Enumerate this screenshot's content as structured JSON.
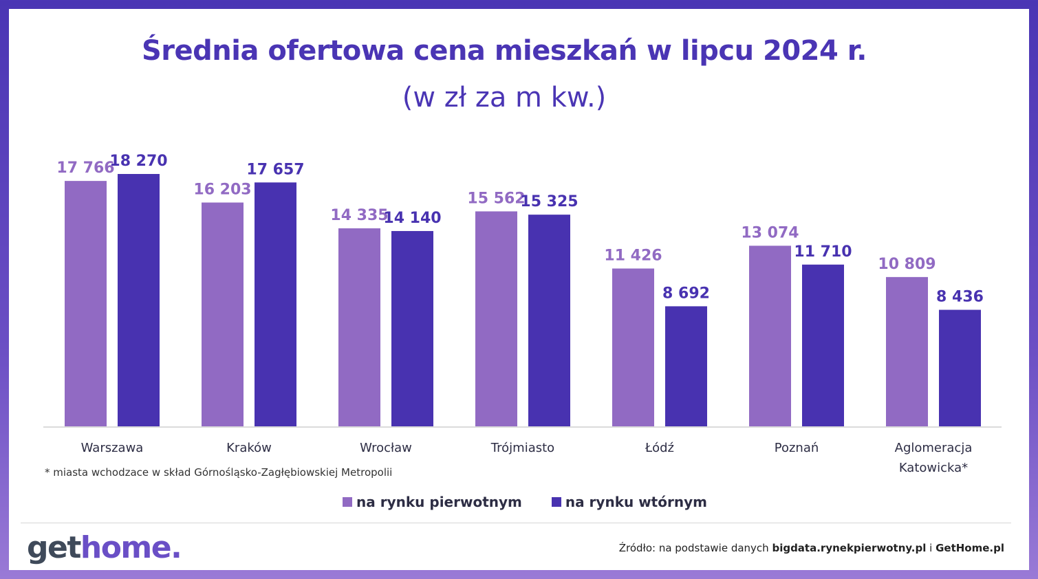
{
  "header": {
    "title": "Średnia ofertowa cena mieszkań w lipcu 2024 r.",
    "subtitle": "(w zł za m kw.)"
  },
  "colors": {
    "primary": "#916ac3",
    "secondary": "#4832b0",
    "accent": "#4a35b4",
    "frame": "#5a41bd"
  },
  "chart_data": {
    "type": "bar",
    "title": "Średnia ofertowa cena mieszkań w lipcu 2024 r.",
    "subtitle": "(w zł za m kw.)",
    "categories": [
      "Warszawa",
      "Kraków",
      "Wrocław",
      "Trójmiasto",
      "Łódź",
      "Poznań",
      "Aglomeracja Katowicka*"
    ],
    "category_lines": [
      [
        "Warszawa"
      ],
      [
        "Kraków"
      ],
      [
        "Wrocław"
      ],
      [
        "Trójmiasto"
      ],
      [
        "Łódź"
      ],
      [
        "Poznań"
      ],
      [
        "Aglomeracja",
        "Katowicka*"
      ]
    ],
    "series": [
      {
        "name": "na rynku pierwotnym",
        "color": "#916ac3",
        "values": [
          17766,
          16203,
          14335,
          15562,
          11426,
          13074,
          10809
        ],
        "labels": [
          "17 766",
          "16 203",
          "14 335",
          "15 562",
          "11 426",
          "13 074",
          "10 809"
        ]
      },
      {
        "name": "na rynku wtórnym",
        "color": "#4832b0",
        "values": [
          18270,
          17657,
          14140,
          15325,
          8692,
          11710,
          8436
        ],
        "labels": [
          "18 270",
          "17 657",
          "14 140",
          "15 325",
          "8 692",
          "11 710",
          "8 436"
        ]
      }
    ],
    "xlabel": "",
    "ylabel": "",
    "ylim": [
      0,
      18270
    ],
    "grid": false,
    "legend_position": "bottom-center"
  },
  "footnote": "* miasta wchodzace w skład Górnośląsko-Zagłębiowskiej Metropolii",
  "legend": {
    "primary_label": "na rynku pierwotnym",
    "secondary_label": "na rynku wtórnym"
  },
  "logo": {
    "part1": "get",
    "part2": "home."
  },
  "source": {
    "prefix": "Źródło: na podstawie danych ",
    "bold1": "bigdata.rynekpierwotny.pl",
    "middle": " i ",
    "bold2": "GetHome.pl"
  }
}
